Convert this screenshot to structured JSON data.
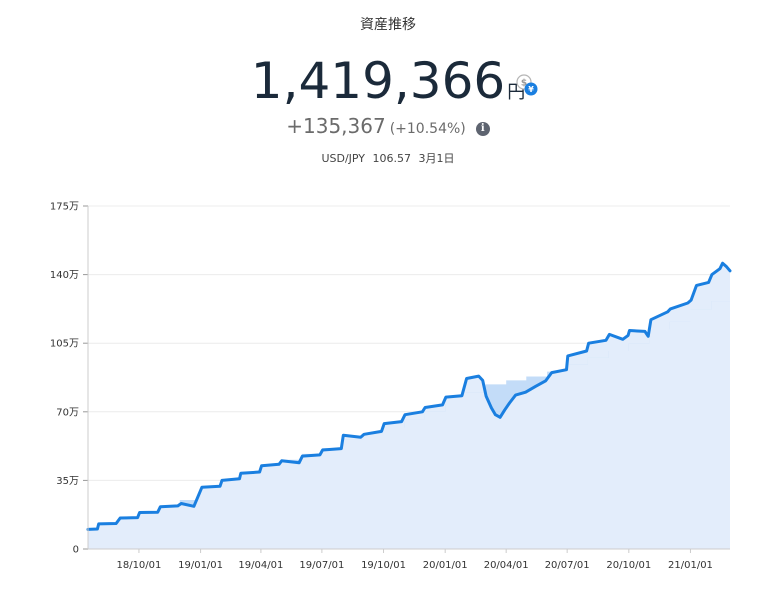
{
  "header": {
    "title": "資産推移",
    "total_value": "1,419,366",
    "total_unit": "円",
    "change_value": "+135,367",
    "change_percent": "(+10.54%)",
    "fx_pair": "USD/JPY",
    "fx_rate": "106.57",
    "fx_date": "3月1日",
    "currency_toggle_icon": "currency-toggle-icon",
    "info_icon": "info-icon"
  },
  "colors": {
    "line": "#1a7fe0",
    "area": "#e3edfb",
    "invested_step": "#b8d6f7",
    "grid": "#ececec"
  },
  "chart_data": {
    "type": "area",
    "title": "",
    "xlabel": "",
    "ylabel": "",
    "ylim": [
      0,
      1750000
    ],
    "xlim": [
      "2018-07-17",
      "2021-03-01"
    ],
    "grid": true,
    "y_ticks": [
      {
        "value": 0,
        "label": "0"
      },
      {
        "value": 350000,
        "label": "35万"
      },
      {
        "value": 700000,
        "label": "70万"
      },
      {
        "value": 1050000,
        "label": "105万"
      },
      {
        "value": 1400000,
        "label": "140万"
      },
      {
        "value": 1750000,
        "label": "175万"
      }
    ],
    "x_ticks": [
      {
        "value": "2018-10-01",
        "label": "18/10/01"
      },
      {
        "value": "2019-01-01",
        "label": "19/01/01"
      },
      {
        "value": "2019-04-01",
        "label": "19/04/01"
      },
      {
        "value": "2019-07-01",
        "label": "19/07/01"
      },
      {
        "value": "2019-10-01",
        "label": "19/10/01"
      },
      {
        "value": "2020-01-01",
        "label": "20/01/01"
      },
      {
        "value": "2020-04-01",
        "label": "20/04/01"
      },
      {
        "value": "2020-07-01",
        "label": "20/07/01"
      },
      {
        "value": "2020-10-01",
        "label": "20/10/01"
      },
      {
        "value": "2021-01-01",
        "label": "21/01/01"
      }
    ],
    "series": [
      {
        "key": "market_value",
        "style": "line",
        "points": [
          [
            "2018-07-17",
            100000
          ],
          [
            "2018-07-31",
            102000
          ],
          [
            "2018-08-02",
            128000
          ],
          [
            "2018-08-28",
            130000
          ],
          [
            "2018-09-03",
            158000
          ],
          [
            "2018-09-29",
            160000
          ],
          [
            "2018-10-02",
            186000
          ],
          [
            "2018-10-29",
            188000
          ],
          [
            "2018-11-02",
            216000
          ],
          [
            "2018-11-28",
            220000
          ],
          [
            "2018-12-03",
            232000
          ],
          [
            "2018-12-22",
            218000
          ],
          [
            "2019-01-03",
            315000
          ],
          [
            "2019-01-30",
            320000
          ],
          [
            "2019-02-02",
            350000
          ],
          [
            "2019-02-28",
            358000
          ],
          [
            "2019-03-02",
            386000
          ],
          [
            "2019-03-30",
            393000
          ],
          [
            "2019-04-02",
            425000
          ],
          [
            "2019-04-28",
            432000
          ],
          [
            "2019-05-02",
            450000
          ],
          [
            "2019-05-28",
            440000
          ],
          [
            "2019-06-02",
            474000
          ],
          [
            "2019-06-28",
            480000
          ],
          [
            "2019-07-02",
            505000
          ],
          [
            "2019-07-30",
            512000
          ],
          [
            "2019-08-02",
            580000
          ],
          [
            "2019-08-28",
            570000
          ],
          [
            "2019-09-02",
            585000
          ],
          [
            "2019-09-28",
            600000
          ],
          [
            "2019-10-02",
            640000
          ],
          [
            "2019-10-28",
            650000
          ],
          [
            "2019-11-02",
            685000
          ],
          [
            "2019-11-28",
            700000
          ],
          [
            "2019-12-02",
            722000
          ],
          [
            "2019-12-28",
            735000
          ],
          [
            "2020-01-02",
            775000
          ],
          [
            "2020-01-26",
            782000
          ],
          [
            "2020-02-02",
            870000
          ],
          [
            "2020-02-20",
            882000
          ],
          [
            "2020-02-26",
            860000
          ],
          [
            "2020-03-02",
            780000
          ],
          [
            "2020-03-10",
            720000
          ],
          [
            "2020-03-16",
            685000
          ],
          [
            "2020-03-23",
            672000
          ],
          [
            "2020-03-30",
            710000
          ],
          [
            "2020-04-06",
            745000
          ],
          [
            "2020-04-15",
            785000
          ],
          [
            "2020-04-30",
            800000
          ],
          [
            "2020-05-15",
            830000
          ],
          [
            "2020-05-30",
            858000
          ],
          [
            "2020-06-08",
            900000
          ],
          [
            "2020-06-30",
            915000
          ],
          [
            "2020-07-02",
            985000
          ],
          [
            "2020-07-30",
            1010000
          ],
          [
            "2020-08-02",
            1050000
          ],
          [
            "2020-08-28",
            1065000
          ],
          [
            "2020-09-02",
            1095000
          ],
          [
            "2020-09-22",
            1070000
          ],
          [
            "2020-09-30",
            1090000
          ],
          [
            "2020-10-02",
            1115000
          ],
          [
            "2020-10-25",
            1110000
          ],
          [
            "2020-10-30",
            1085000
          ],
          [
            "2020-11-03",
            1170000
          ],
          [
            "2020-11-28",
            1210000
          ],
          [
            "2020-12-02",
            1225000
          ],
          [
            "2020-12-28",
            1255000
          ],
          [
            "2021-01-02",
            1270000
          ],
          [
            "2021-01-10",
            1345000
          ],
          [
            "2021-01-28",
            1360000
          ],
          [
            "2021-02-02",
            1400000
          ],
          [
            "2021-02-14",
            1430000
          ],
          [
            "2021-02-18",
            1458000
          ],
          [
            "2021-02-24",
            1440000
          ],
          [
            "2021-03-01",
            1419366
          ]
        ]
      },
      {
        "key": "invested_amount",
        "style": "step-area",
        "points": [
          [
            "2018-07-17",
            100000
          ],
          [
            "2018-08-01",
            130000
          ],
          [
            "2018-09-01",
            160000
          ],
          [
            "2018-10-01",
            190000
          ],
          [
            "2018-11-01",
            220000
          ],
          [
            "2018-12-01",
            250000
          ],
          [
            "2019-01-01",
            320000
          ],
          [
            "2019-02-01",
            355000
          ],
          [
            "2019-03-01",
            390000
          ],
          [
            "2019-04-01",
            425000
          ],
          [
            "2019-05-01",
            455000
          ],
          [
            "2019-06-01",
            485000
          ],
          [
            "2019-07-01",
            515000
          ],
          [
            "2019-08-01",
            560000
          ],
          [
            "2019-09-01",
            590000
          ],
          [
            "2019-10-01",
            620000
          ],
          [
            "2019-11-01",
            660000
          ],
          [
            "2019-12-01",
            700000
          ],
          [
            "2020-01-01",
            740000
          ],
          [
            "2020-02-01",
            800000
          ],
          [
            "2020-03-01",
            840000
          ],
          [
            "2020-04-01",
            860000
          ],
          [
            "2020-05-01",
            880000
          ],
          [
            "2020-06-01",
            905000
          ],
          [
            "2020-07-01",
            940000
          ],
          [
            "2020-08-01",
            975000
          ],
          [
            "2020-09-01",
            1010000
          ],
          [
            "2020-10-01",
            1050000
          ],
          [
            "2020-11-01",
            1120000
          ],
          [
            "2020-12-01",
            1160000
          ],
          [
            "2021-01-01",
            1220000
          ],
          [
            "2021-02-01",
            1265000
          ],
          [
            "2021-03-01",
            1265000
          ]
        ]
      }
    ]
  }
}
